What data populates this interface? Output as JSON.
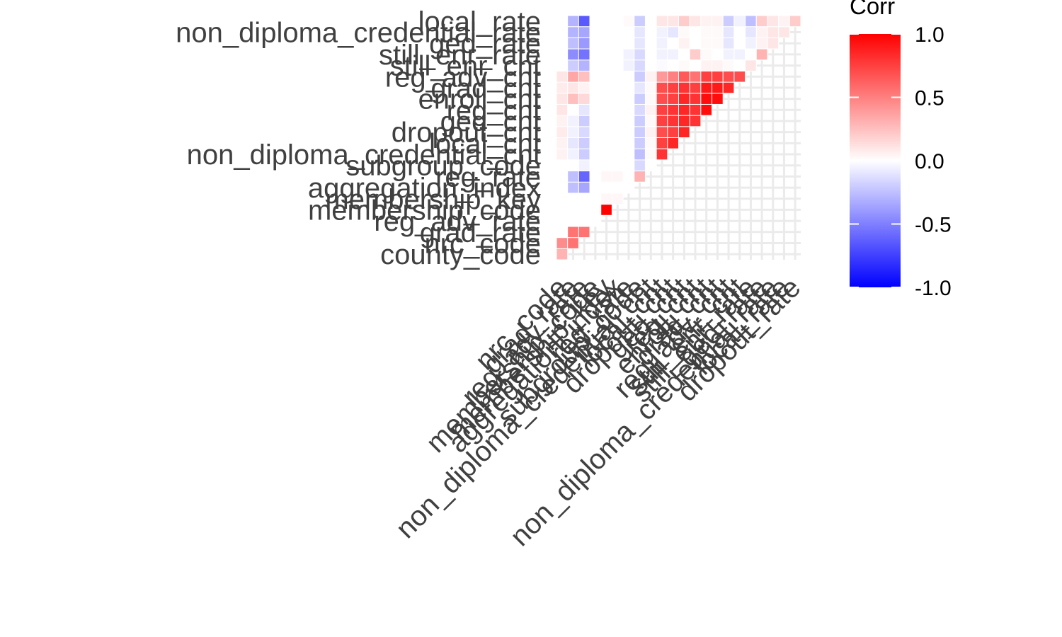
{
  "chart_data": {
    "type": "heatmap",
    "variables": [
      "county_code",
      "nrc_code",
      "grad_rate",
      "reg_adv_rate",
      "membership_code",
      "membership_key",
      "aggregation_index",
      "reg_rate",
      "subgroup_code",
      "non_diploma_credential_cnt",
      "local_cnt",
      "dropout_cnt",
      "ged_cnt",
      "reg_cnt",
      "enroll_cnt",
      "grad_cnt",
      "reg_adv_cnt",
      "still_enr_cnt",
      "still_enr_rate",
      "ged_rate",
      "non_diploma_credential_rate",
      "local_rate"
    ],
    "x_labels": [
      "nrc_code",
      "grad_rate",
      "reg_adv_rate",
      "membership_code",
      "membership_key",
      "aggregation_index",
      "reg_rate",
      "subgroup_code",
      "non_diploma_credential_cnt",
      "local_cnt",
      "dropout_cnt",
      "ged_cnt",
      "reg_cnt",
      "enroll_cnt",
      "grad_cnt",
      "reg_adv_cnt",
      "still_enr_cnt",
      "still_enr_rate",
      "ged_rate",
      "non_diploma_credential_rate",
      "local_rate",
      "dropout_rate"
    ],
    "y_labels": [
      "county_code",
      "nrc_code",
      "grad_rate",
      "reg_adv_rate",
      "membership_code",
      "membership_key",
      "aggregation_index",
      "reg_rate",
      "subgroup_code",
      "non_diploma_credential_cnt",
      "local_cnt",
      "dropout_cnt",
      "ged_cnt",
      "reg_cnt",
      "enroll_cnt",
      "grad_cnt",
      "reg_adv_cnt",
      "still_enr_cnt",
      "still_enr_rate",
      "ged_rate",
      "non_diploma_credential_rate",
      "local_rate"
    ],
    "correlation_lower_triangle": [
      [
        0.3
      ],
      [
        0.45,
        0.55
      ],
      [
        0.0,
        0.55,
        0.55
      ],
      [
        0.0,
        0.0,
        0.0,
        0.0
      ],
      [
        0.0,
        0.0,
        0.0,
        0.0,
        1.0
      ],
      [
        0.0,
        0.0,
        0.0,
        0.0,
        0.03,
        0.03
      ],
      [
        0.0,
        -0.25,
        -0.35,
        0.0,
        0.0,
        0.0,
        0.0
      ],
      [
        0.0,
        -0.25,
        -0.6,
        0.0,
        0.03,
        0.03,
        0.0,
        0.3
      ],
      [
        0.0,
        0.0,
        -0.05,
        0.0,
        0.0,
        0.0,
        0.0,
        -0.15,
        0.0
      ],
      [
        0.05,
        -0.05,
        -0.2,
        0.0,
        0.0,
        0.0,
        0.0,
        -0.25,
        0.02,
        0.8
      ],
      [
        0.05,
        -0.1,
        -0.2,
        0.0,
        0.0,
        0.0,
        0.0,
        -0.2,
        0.02,
        0.75,
        0.85
      ],
      [
        0.08,
        -0.05,
        -0.15,
        0.0,
        0.0,
        0.0,
        0.0,
        -0.2,
        0.05,
        0.7,
        0.75,
        0.85
      ],
      [
        0.05,
        -0.05,
        -0.2,
        0.0,
        0.0,
        0.0,
        0.0,
        -0.2,
        0.02,
        0.75,
        0.8,
        0.85,
        0.8
      ],
      [
        0.1,
        0.0,
        -0.1,
        0.0,
        0.0,
        0.0,
        0.0,
        -0.15,
        0.05,
        0.75,
        0.8,
        0.85,
        0.8,
        0.95
      ],
      [
        0.1,
        0.25,
        0.15,
        0.0,
        0.0,
        0.0,
        0.0,
        -0.2,
        0.02,
        0.7,
        0.75,
        0.85,
        0.8,
        0.95,
        0.95
      ],
      [
        0.08,
        0.1,
        0.05,
        0.0,
        0.0,
        0.0,
        0.0,
        -0.1,
        0.02,
        0.7,
        0.75,
        0.8,
        0.75,
        0.9,
        0.9,
        0.85
      ],
      [
        0.1,
        0.35,
        0.25,
        0.0,
        0.0,
        0.0,
        0.0,
        -0.2,
        0.05,
        0.4,
        0.5,
        0.65,
        0.55,
        0.75,
        0.75,
        0.7,
        0.7
      ],
      [
        0.0,
        -0.2,
        -0.3,
        0.0,
        0.0,
        0.0,
        -0.05,
        -0.15,
        0.0,
        -0.02,
        0.0,
        0.02,
        0.0,
        0.05,
        0.05,
        0.02,
        0.0,
        0.1
      ],
      [
        0.0,
        -0.45,
        -0.55,
        0.0,
        0.0,
        0.0,
        -0.05,
        -0.15,
        0.0,
        -0.05,
        -0.05,
        0.0,
        0.2,
        0.02,
        0.0,
        -0.05,
        -0.05,
        0.0,
        0.3
      ],
      [
        0.0,
        -0.25,
        -0.4,
        0.0,
        0.0,
        0.0,
        0.0,
        -0.1,
        0.0,
        -0.05,
        0.0,
        0.05,
        0.0,
        0.02,
        0.02,
        -0.1,
        0.0,
        -0.05,
        0.05,
        0.1
      ],
      [
        0.0,
        -0.3,
        -0.35,
        0.0,
        0.0,
        0.0,
        0.0,
        -0.1,
        0.0,
        -0.05,
        -0.1,
        0.02,
        0.0,
        0.02,
        0.02,
        -0.1,
        0.0,
        -0.1,
        0.05,
        0.1,
        0.1
      ],
      [
        0.0,
        -0.3,
        -0.65,
        0.0,
        0.0,
        0.0,
        0.02,
        -0.2,
        0.0,
        0.1,
        0.1,
        0.2,
        0.1,
        0.05,
        0.05,
        -0.2,
        -0.05,
        -0.25,
        0.2,
        0.1,
        0.05,
        0.2
      ]
    ],
    "color_scale": {
      "low": "#0000FF",
      "mid": "#FFFFFF",
      "high": "#FF0000",
      "limits": [
        -1,
        1
      ]
    },
    "grid_color": "#EBEBEB",
    "tile_border": "#FFFFFF",
    "legend": {
      "title": "Corr",
      "ticks": [
        "1.0",
        "0.5",
        "0.0",
        "-0.5",
        "-1.0"
      ],
      "tick_values": [
        1.0,
        0.5,
        0.0,
        -0.5,
        -1.0
      ],
      "placement": "right"
    }
  }
}
